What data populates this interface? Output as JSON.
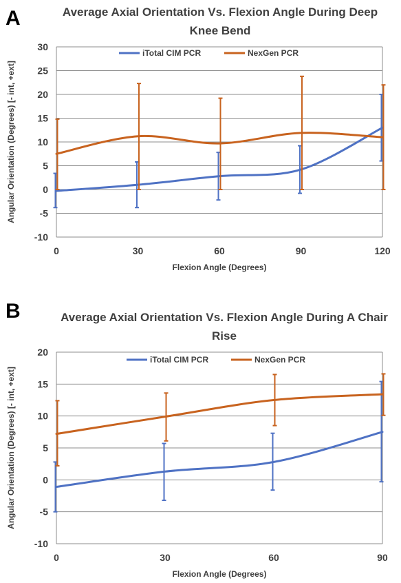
{
  "colors": {
    "itotal": "#4f72c4",
    "nexgen": "#c8631f",
    "grid": "#8c8c8c"
  },
  "chart_data": [
    {
      "panel_label": "A",
      "type": "line",
      "title": "Average Axial Orientation Vs. Flexion Angle During Deep Knee Bend",
      "xlabel": "Flexion Angle (Degrees)",
      "ylabel": "Angular Orientation (Degrees) [- int, +ext]",
      "x": [
        0,
        30,
        60,
        90,
        120
      ],
      "xlim": [
        0,
        120
      ],
      "ylim": [
        -10,
        30
      ],
      "xticks": [
        0,
        30,
        60,
        90,
        120
      ],
      "yticks": [
        -10,
        -5,
        0,
        5,
        10,
        15,
        20,
        25,
        30
      ],
      "grid": true,
      "legend_position": "top",
      "series": [
        {
          "name": "iTotal CIM PCR",
          "color": "#4f72c4",
          "values": [
            -0.3,
            1.0,
            2.8,
            4.2,
            13.0
          ],
          "err_low": [
            -3.8,
            -3.8,
            -2.2,
            -0.8,
            6.0
          ],
          "err_high": [
            3.4,
            5.8,
            7.8,
            9.2,
            20.0
          ]
        },
        {
          "name": "NexGen PCR",
          "color": "#c8631f",
          "values": [
            7.5,
            11.2,
            9.7,
            11.9,
            11.0
          ],
          "err_low": [
            0.0,
            0.0,
            0.0,
            0.0,
            0.0
          ],
          "err_high": [
            14.8,
            22.3,
            19.2,
            23.8,
            22.0
          ]
        }
      ]
    },
    {
      "panel_label": "B",
      "type": "line",
      "title": "Average Axial Orientation Vs. Flexion Angle During A Chair Rise",
      "xlabel": "Flexion Angle (Degrees)",
      "ylabel": "Angular Orientation (Degrees) [- int, +ext]",
      "x": [
        0,
        30,
        60,
        90
      ],
      "xlim": [
        0,
        90
      ],
      "ylim": [
        -10,
        20
      ],
      "xticks": [
        0,
        30,
        60,
        90
      ],
      "yticks": [
        -10,
        -5,
        0,
        5,
        10,
        15,
        20
      ],
      "grid": true,
      "legend_position": "top",
      "series": [
        {
          "name": "iTotal CIM PCR",
          "color": "#4f72c4",
          "values": [
            -1.1,
            1.3,
            2.8,
            7.5
          ],
          "err_low": [
            -5.0,
            -3.2,
            -1.6,
            -0.3
          ],
          "err_high": [
            2.8,
            5.7,
            7.3,
            15.4
          ]
        },
        {
          "name": "NexGen PCR",
          "color": "#c8631f",
          "values": [
            7.2,
            9.9,
            12.5,
            13.4
          ],
          "err_low": [
            2.2,
            6.1,
            8.5,
            10.1
          ],
          "err_high": [
            12.4,
            13.6,
            16.5,
            16.6
          ]
        }
      ]
    }
  ]
}
